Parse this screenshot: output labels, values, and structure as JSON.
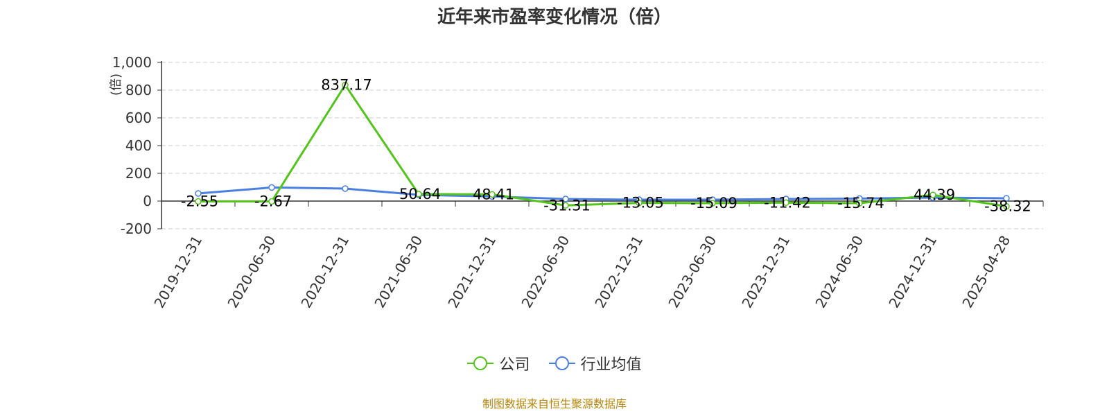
{
  "chart_data": {
    "type": "line",
    "title": "近年来市盈率变化情况（倍）",
    "ylabel": "(倍)",
    "xlabel": "",
    "categories": [
      "2019-12-31",
      "2020-06-30",
      "2020-12-31",
      "2021-06-30",
      "2021-12-31",
      "2022-06-30",
      "2022-12-31",
      "2023-06-30",
      "2023-12-31",
      "2024-06-30",
      "2024-12-31",
      "2025-04-28"
    ],
    "ylim": [
      -200,
      1000
    ],
    "yticks": [
      -200,
      0,
      200,
      400,
      600,
      800,
      1000
    ],
    "ytick_labels": [
      "-200",
      "0",
      "200",
      "400",
      "600",
      "800",
      "1,000"
    ],
    "grid": true,
    "legend_position": "bottom",
    "series": [
      {
        "name": "公司",
        "color": "#52c41a",
        "values": [
          -2.55,
          -2.67,
          837.17,
          50.64,
          48.41,
          -31.31,
          -13.05,
          -15.09,
          -11.42,
          -15.74,
          44.39,
          -38.32
        ],
        "labels": [
          "-2.55",
          "-2.67",
          "837.17",
          "50.64",
          "48.41",
          "-31.31",
          "-13.05",
          "-15.09",
          "-11.42",
          "-15.74",
          "44.39",
          "-38.32"
        ]
      },
      {
        "name": "行业均值",
        "color": "#4a7fe0",
        "values": [
          55,
          98,
          90,
          45,
          33,
          15,
          10,
          10,
          15,
          18,
          25,
          20
        ]
      }
    ]
  },
  "source_note": {
    "text": "制图数据来自恒生聚源数据库",
    "color": "#b8860b"
  },
  "title_color": "#333333",
  "axis_color": "#333333",
  "label_color_y": "#e02020"
}
